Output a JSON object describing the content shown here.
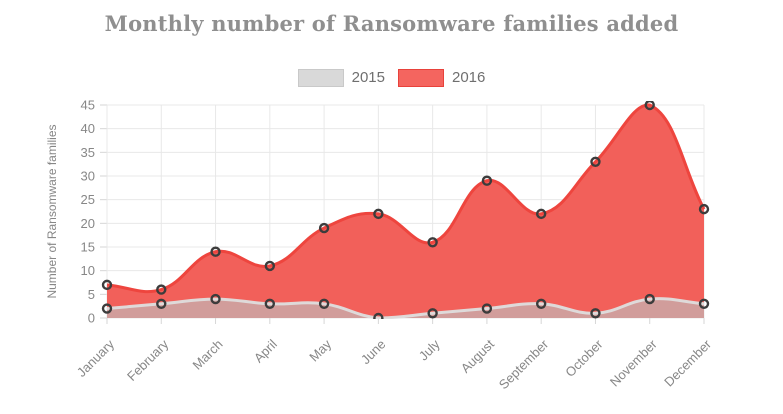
{
  "chart_data": {
    "type": "area",
    "title": "Monthly number of Ransomware families added",
    "ylabel": "Number of Ransomware families",
    "categories": [
      "January",
      "February",
      "March",
      "April",
      "May",
      "June",
      "July",
      "August",
      "September",
      "October",
      "November",
      "December"
    ],
    "series": [
      {
        "name": "2015",
        "values": [
          2,
          3,
          4,
          3,
          3,
          0,
          1,
          2,
          3,
          1,
          4,
          3
        ],
        "area_fill": "rgba(190,190,190,0.65)",
        "line_color": "rgba(222,222,222,0.95)",
        "swatch_fill": "#d9d9d9",
        "swatch_border": "#c9c9c9"
      },
      {
        "name": "2016",
        "values": [
          7,
          6,
          14,
          11,
          19,
          22,
          16,
          29,
          22,
          33,
          45,
          23
        ],
        "area_fill": "#f2605a",
        "line_color": "#ee453e",
        "swatch_fill": "#f4655f",
        "swatch_border": "#e8423b"
      }
    ],
    "ylim": [
      0,
      45
    ],
    "ytick_step": 5,
    "grid": true,
    "legend_position": "top",
    "colors": {
      "grid": "#e8e8e8",
      "axis_tick": "#d6d6d6",
      "axis_text": "#878787",
      "title": "#8f8f8f",
      "legend_text": "#6f6f6f",
      "point_ring": "#3c3c3c",
      "background": "#ffffff"
    }
  }
}
